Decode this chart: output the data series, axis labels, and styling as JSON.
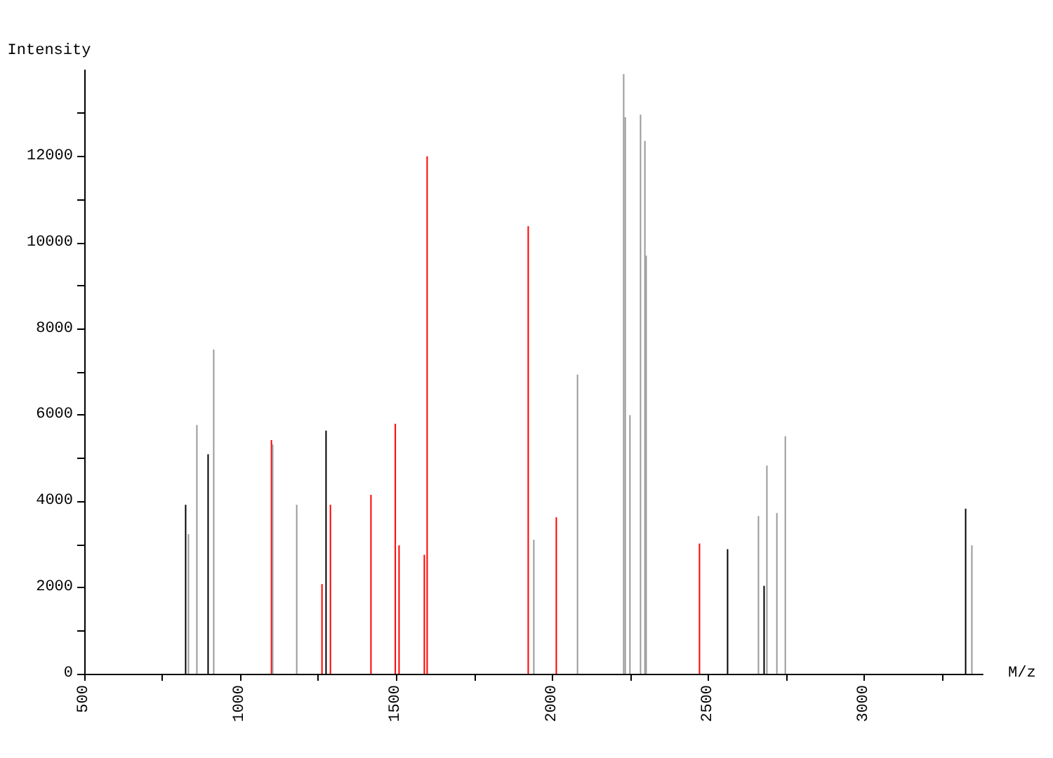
{
  "chart_data": {
    "type": "bar",
    "xlabel": "M/z",
    "ylabel": "Intensity",
    "xlim": [
      500,
      3380
    ],
    "ylim": [
      0,
      14000
    ],
    "xticks": [
      500,
      {
        "value": 750,
        "label": null
      },
      1000,
      {
        "value": 1250,
        "label": null
      },
      1500,
      {
        "value": 1750,
        "label": null
      },
      2000,
      {
        "value": 2250,
        "label": null
      },
      2500,
      {
        "value": 2750,
        "label": null
      },
      3000,
      {
        "value": 3250,
        "label": null
      }
    ],
    "yticks": [
      0,
      {
        "value": 1000,
        "label": null
      },
      2000,
      {
        "value": 3000,
        "label": null
      },
      4000,
      {
        "value": 5000,
        "label": null
      },
      6000,
      {
        "value": 7000,
        "label": null
      },
      8000,
      {
        "value": 9000,
        "label": null
      },
      10000,
      {
        "value": 11000,
        "label": null
      },
      12000,
      {
        "value": 13000,
        "label": null
      }
    ],
    "series": [
      {
        "color": "#000000",
        "x": [
          825,
          897,
          1275,
          2562,
          2679,
          3325
        ],
        "values": [
          3920,
          5090,
          5640,
          2890,
          2040,
          3830
        ]
      },
      {
        "color": "#999999",
        "x": [
          834,
          861,
          915,
          1104,
          1181,
          1941,
          2081,
          2229,
          2234,
          2249,
          2283,
          2297,
          2301,
          2661,
          2688,
          2720,
          2747,
          3345
        ],
        "values": [
          3240,
          5770,
          7520,
          5320,
          3920,
          3110,
          6940,
          13910,
          12910,
          6000,
          12970,
          12360,
          9700,
          3660,
          4830,
          3730,
          5510,
          2980
        ]
      },
      {
        "color": "#ff0000",
        "x": [
          1100,
          1262,
          1289,
          1419,
          1497,
          1509,
          1590,
          1599,
          1923,
          2013,
          2472
        ],
        "values": [
          5420,
          2080,
          3920,
          4150,
          5800,
          2980,
          2760,
          12000,
          10380,
          3630,
          3020
        ]
      }
    ]
  }
}
